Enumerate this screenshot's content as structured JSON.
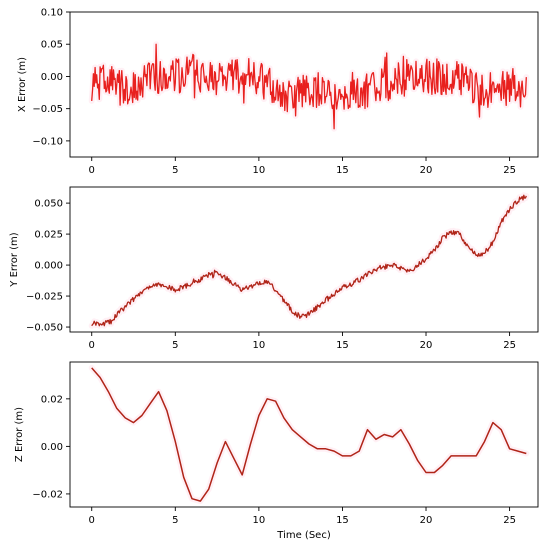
{
  "chart_data": [
    {
      "type": "line",
      "title": "",
      "xlabel": "",
      "ylabel": "X Error (m)",
      "xlim": [
        -1.3,
        26.7
      ],
      "ylim": [
        -0.125,
        0.1
      ],
      "xticks": [
        0,
        5,
        10,
        15,
        20,
        25
      ],
      "yticks": [
        -0.1,
        -0.05,
        0.0,
        0.05,
        0.1
      ],
      "ytick_labels": [
        "−0.10",
        "−0.05",
        "0.00",
        "0.05",
        "0.10"
      ],
      "grid": false,
      "series": [
        {
          "color": "#e8201e",
          "highlight_color": "#fff0f5",
          "noisy": true,
          "noise_amp": 0.028,
          "x": [
            0,
            1,
            2,
            3,
            4,
            5,
            6,
            7,
            8,
            9,
            10,
            11,
            12,
            13,
            14,
            15,
            16,
            17,
            18,
            19,
            20,
            21,
            22,
            23,
            24,
            25,
            26
          ],
          "y": [
            -0.01,
            -0.01,
            -0.02,
            -0.01,
            0.0,
            0.0,
            0.01,
            0.0,
            0.0,
            0.0,
            -0.005,
            -0.02,
            -0.03,
            -0.02,
            -0.02,
            -0.04,
            -0.03,
            -0.01,
            -0.01,
            0.0,
            0.0,
            0.0,
            0.0,
            -0.02,
            -0.02,
            -0.02,
            -0.02
          ]
        }
      ]
    },
    {
      "type": "line",
      "title": "",
      "xlabel": "",
      "ylabel": "Y Error (m)",
      "xlim": [
        -1.3,
        26.7
      ],
      "ylim": [
        -0.054,
        0.063
      ],
      "xticks": [
        0,
        5,
        10,
        15,
        20,
        25
      ],
      "yticks": [
        -0.05,
        -0.025,
        0.0,
        0.025,
        0.05
      ],
      "ytick_labels": [
        "−0.050",
        "−0.025",
        "0.000",
        "0.025",
        "0.050"
      ],
      "grid": false,
      "series": [
        {
          "color": "#b02418",
          "highlight_color": "#fff0f5",
          "noisy": true,
          "noise_amp": 0.002,
          "x": [
            0,
            0.5,
            1,
            1.5,
            2,
            3,
            4,
            5,
            6,
            7,
            7.5,
            8,
            9,
            10,
            10.5,
            11,
            12,
            12.5,
            13,
            14,
            15,
            16,
            17,
            18,
            19,
            20,
            20.5,
            21,
            21.5,
            22,
            22.5,
            23,
            23.5,
            24,
            24.5,
            25,
            25.5,
            26
          ],
          "y": [
            -0.047,
            -0.048,
            -0.046,
            -0.04,
            -0.033,
            -0.022,
            -0.015,
            -0.02,
            -0.015,
            -0.008,
            -0.007,
            -0.01,
            -0.02,
            -0.015,
            -0.013,
            -0.02,
            -0.037,
            -0.042,
            -0.04,
            -0.028,
            -0.018,
            -0.012,
            -0.003,
            0.0,
            -0.005,
            0.005,
            0.012,
            0.022,
            0.027,
            0.025,
            0.015,
            0.008,
            0.01,
            0.018,
            0.035,
            0.045,
            0.052,
            0.056
          ]
        }
      ]
    },
    {
      "type": "line",
      "title": "",
      "xlabel": "Time (Sec)",
      "ylabel": "Z Error (m)",
      "xlim": [
        -1.3,
        26.7
      ],
      "ylim": [
        -0.0255,
        0.0355
      ],
      "xticks": [
        0,
        5,
        10,
        15,
        20,
        25
      ],
      "yticks": [
        -0.02,
        0.0,
        0.02
      ],
      "ytick_labels": [
        "−0.02",
        "0.00",
        "0.02"
      ],
      "grid": false,
      "series": [
        {
          "color": "#b02418",
          "highlight_color": "#fff0f5",
          "noisy": false,
          "noise_amp": 0,
          "x": [
            0,
            0.5,
            1,
            1.5,
            2,
            2.5,
            3,
            3.5,
            4,
            4.5,
            5,
            5.5,
            6,
            6.5,
            7,
            7.5,
            8,
            8.5,
            9,
            9.5,
            10,
            10.5,
            11,
            11.5,
            12,
            12.5,
            13,
            13.5,
            14,
            14.5,
            15,
            15.5,
            16,
            16.5,
            17,
            17.5,
            18,
            18.5,
            19,
            19.5,
            20,
            20.5,
            21,
            21.5,
            22,
            22.5,
            23,
            23.5,
            24,
            24.5,
            25,
            25.5,
            26
          ],
          "y": [
            0.033,
            0.029,
            0.023,
            0.016,
            0.012,
            0.01,
            0.013,
            0.018,
            0.023,
            0.015,
            0.002,
            -0.013,
            -0.022,
            -0.023,
            -0.018,
            -0.007,
            0.002,
            -0.005,
            -0.012,
            0.001,
            0.013,
            0.02,
            0.019,
            0.012,
            0.007,
            0.004,
            0.001,
            -0.001,
            -0.001,
            -0.002,
            -0.004,
            -0.004,
            -0.002,
            0.007,
            0.003,
            0.005,
            0.004,
            0.007,
            0.001,
            -0.006,
            -0.011,
            -0.011,
            -0.008,
            -0.004,
            -0.004,
            -0.004,
            -0.004,
            0.002,
            0.01,
            0.007,
            -0.001,
            -0.002,
            -0.003
          ]
        }
      ]
    }
  ]
}
